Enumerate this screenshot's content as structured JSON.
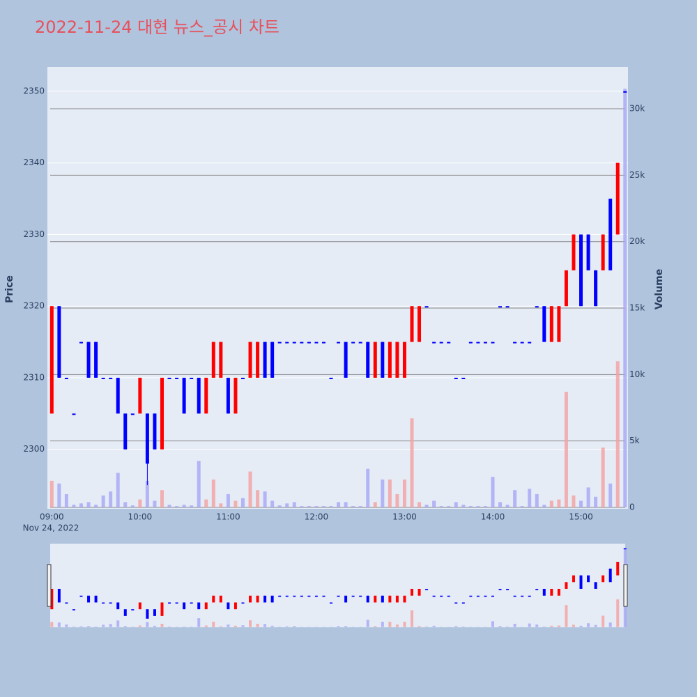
{
  "chart_data": {
    "type": "candlestick",
    "title": "2022-11-24 대현 뉴스_공시 차트",
    "y_title": "Price",
    "y2_title": "Volume",
    "x_date_label": "Nov 24, 2022",
    "x": [
      "09:00",
      "09:05",
      "09:10",
      "09:15",
      "09:20",
      "09:25",
      "09:30",
      "09:35",
      "09:40",
      "09:45",
      "09:50",
      "09:55",
      "10:00",
      "10:05",
      "10:10",
      "10:15",
      "10:20",
      "10:25",
      "10:30",
      "10:35",
      "10:40",
      "10:45",
      "10:50",
      "10:55",
      "11:00",
      "11:05",
      "11:10",
      "11:15",
      "11:20",
      "11:25",
      "11:30",
      "11:35",
      "11:40",
      "11:45",
      "11:50",
      "11:55",
      "12:00",
      "12:05",
      "12:10",
      "12:15",
      "12:20",
      "12:25",
      "12:30",
      "12:35",
      "12:40",
      "12:45",
      "12:50",
      "12:55",
      "13:00",
      "13:05",
      "13:10",
      "13:15",
      "13:20",
      "13:25",
      "13:30",
      "13:35",
      "13:40",
      "13:45",
      "13:50",
      "13:55",
      "14:00",
      "14:05",
      "14:10",
      "14:15",
      "14:20",
      "14:25",
      "14:30",
      "14:35",
      "14:40",
      "14:45",
      "14:50",
      "14:55",
      "15:00",
      "15:05",
      "15:10",
      "15:15",
      "15:20",
      "15:25",
      "15:30"
    ],
    "open": [
      2305,
      2320,
      2310,
      2305,
      2315,
      2315,
      2315,
      2310,
      2310,
      2310,
      2305,
      2305,
      2305,
      2305,
      2305,
      2300,
      2310,
      2310,
      2310,
      2310,
      2310,
      2305,
      2310,
      2310,
      2310,
      2305,
      2310,
      2310,
      2310,
      2315,
      2315,
      2315,
      2315,
      2315,
      2315,
      2315,
      2315,
      2315,
      2310,
      2315,
      2315,
      2315,
      2315,
      2315,
      2310,
      2315,
      2310,
      2310,
      2310,
      2315,
      2315,
      2320,
      2315,
      2315,
      2315,
      2310,
      2310,
      2315,
      2315,
      2315,
      2315,
      2320,
      2320,
      2315,
      2315,
      2315,
      2320,
      2320,
      2315,
      2315,
      2320,
      2325,
      2330,
      2330,
      2325,
      2325,
      2335,
      2330,
      2350
    ],
    "high": [
      2320,
      2320,
      2310,
      2305,
      2315,
      2315,
      2315,
      2310,
      2310,
      2310,
      2305,
      2305,
      2310,
      2305,
      2305,
      2310,
      2310,
      2310,
      2310,
      2310,
      2310,
      2310,
      2315,
      2315,
      2310,
      2310,
      2310,
      2315,
      2315,
      2315,
      2315,
      2315,
      2315,
      2315,
      2315,
      2315,
      2315,
      2315,
      2310,
      2315,
      2315,
      2315,
      2315,
      2315,
      2315,
      2315,
      2315,
      2315,
      2315,
      2320,
      2320,
      2320,
      2315,
      2315,
      2315,
      2310,
      2310,
      2315,
      2315,
      2315,
      2315,
      2320,
      2320,
      2315,
      2315,
      2315,
      2320,
      2320,
      2320,
      2320,
      2325,
      2330,
      2330,
      2330,
      2325,
      2330,
      2335,
      2340,
      2350
    ],
    "low": [
      2305,
      2310,
      2310,
      2305,
      2315,
      2310,
      2310,
      2310,
      2310,
      2305,
      2300,
      2305,
      2305,
      2295,
      2300,
      2300,
      2310,
      2310,
      2305,
      2310,
      2305,
      2305,
      2310,
      2310,
      2305,
      2305,
      2310,
      2310,
      2310,
      2310,
      2310,
      2315,
      2315,
      2315,
      2315,
      2315,
      2315,
      2315,
      2310,
      2315,
      2310,
      2315,
      2315,
      2310,
      2310,
      2310,
      2310,
      2310,
      2310,
      2315,
      2315,
      2320,
      2315,
      2315,
      2315,
      2310,
      2310,
      2315,
      2315,
      2315,
      2315,
      2320,
      2320,
      2315,
      2315,
      2315,
      2320,
      2315,
      2315,
      2315,
      2320,
      2325,
      2320,
      2325,
      2320,
      2325,
      2325,
      2330,
      2350
    ],
    "close": [
      2320,
      2310,
      2310,
      2305,
      2315,
      2310,
      2310,
      2310,
      2310,
      2305,
      2300,
      2305,
      2310,
      2298,
      2300,
      2310,
      2310,
      2310,
      2305,
      2310,
      2305,
      2310,
      2315,
      2315,
      2305,
      2310,
      2310,
      2315,
      2315,
      2310,
      2310,
      2315,
      2315,
      2315,
      2315,
      2315,
      2315,
      2315,
      2310,
      2315,
      2310,
      2315,
      2315,
      2310,
      2315,
      2310,
      2315,
      2315,
      2315,
      2320,
      2320,
      2320,
      2315,
      2315,
      2315,
      2310,
      2310,
      2315,
      2315,
      2315,
      2315,
      2320,
      2320,
      2315,
      2315,
      2315,
      2320,
      2315,
      2320,
      2320,
      2325,
      2330,
      2320,
      2325,
      2320,
      2330,
      2325,
      2340,
      2350
    ],
    "volume": [
      2000,
      1800,
      1000,
      200,
      300,
      400,
      200,
      900,
      1200,
      2600,
      400,
      150,
      600,
      2000,
      500,
      1300,
      200,
      100,
      200,
      150,
      3500,
      600,
      2100,
      300,
      1000,
      500,
      700,
      2700,
      1300,
      1200,
      500,
      150,
      300,
      400,
      100,
      100,
      100,
      100,
      100,
      400,
      400,
      100,
      100,
      2900,
      400,
      2100,
      2100,
      1000,
      2100,
      6700,
      400,
      200,
      500,
      100,
      100,
      400,
      200,
      100,
      100,
      100,
      2300,
      400,
      200,
      1300,
      100,
      1400,
      1000,
      200,
      500,
      600,
      8700,
      900,
      500,
      1500,
      800,
      4500,
      1800,
      11000,
      31500
    ],
    "increasing_color": "#ff0000",
    "decreasing_color": "#0000ff",
    "increasing_volume_color": "#f4a0a0",
    "decreasing_volume_color": "#a6a6f5",
    "xlim": [
      "08:57",
      "15:32"
    ],
    "xticks": [
      "09:00",
      "10:00",
      "11:00",
      "12:00",
      "13:00",
      "14:00",
      "15:00"
    ],
    "ylim": [
      2291.7,
      2353.4
    ],
    "yticks": [
      2300,
      2310,
      2320,
      2330,
      2340,
      2350
    ],
    "y2lim": [
      -105,
      33150
    ],
    "y2ticks": [
      0,
      {
        "value": 5000,
        "label": "5k"
      },
      {
        "value": 10000,
        "label": "10k"
      },
      {
        "value": 15000,
        "label": "15k"
      },
      {
        "value": 20000,
        "label": "20k"
      },
      {
        "value": 25000,
        "label": "25k"
      },
      {
        "value": 30000,
        "label": "30k"
      }
    ],
    "grid": true,
    "rangeslider": true
  }
}
